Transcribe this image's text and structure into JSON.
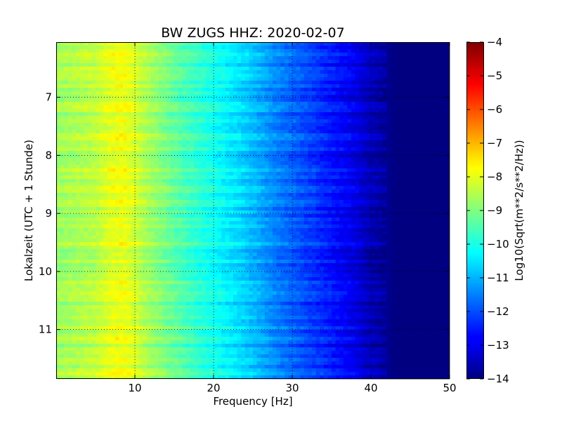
{
  "chart_data": {
    "type": "heatmap",
    "title": "BW ZUGS HHZ: 2020-02-07",
    "xlabel": "Frequency [Hz]",
    "ylabel": "Lokalzeit (UTC + 1 Stunde)",
    "xlim": [
      0,
      50
    ],
    "ylim": [
      11.85,
      6.05
    ],
    "y_inverted": true,
    "x_ticks": [
      10,
      20,
      30,
      40,
      50
    ],
    "y_ticks": [
      7,
      8,
      9,
      10,
      11
    ],
    "grid": true,
    "colormap": "jet",
    "colorbar": {
      "label": "Log10(Sqrt(m**2/s**2/Hz))",
      "min": -14,
      "max": -4,
      "ticks": [
        -4,
        -5,
        -6,
        -7,
        -8,
        -9,
        -10,
        -11,
        -12,
        -13,
        -14
      ]
    },
    "freq_profile": {
      "frequency_hz": [
        0,
        2,
        5,
        7,
        8.5,
        10,
        12,
        15,
        18,
        20,
        22,
        24,
        26,
        28,
        30,
        32,
        34,
        36,
        38,
        39.5,
        41,
        42,
        43,
        50
      ],
      "log10_amplitude": [
        -8.7,
        -8.6,
        -8.4,
        -8.0,
        -7.9,
        -8.2,
        -8.7,
        -9.3,
        -9.8,
        -10.1,
        -10.4,
        -10.7,
        -11.1,
        -11.5,
        -11.8,
        -12.1,
        -12.4,
        -12.7,
        -13.0,
        -13.4,
        -13.6,
        -13.8,
        -14.0,
        -14.0
      ]
    }
  }
}
